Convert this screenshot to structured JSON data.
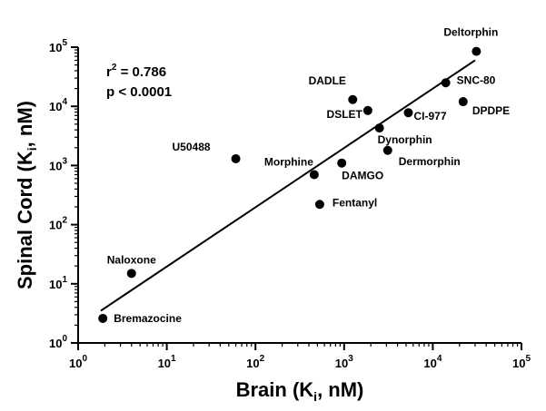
{
  "chart_data": {
    "type": "scatter",
    "xlabel": {
      "main": "Brain (K",
      "sub": "i",
      "end": ", nM)"
    },
    "ylabel": {
      "main": "Spinal Cord (K",
      "sub": "i",
      "end": ", nM)"
    },
    "x_scale": "log",
    "y_scale": "log",
    "xlim": [
      1,
      100000
    ],
    "ylim": [
      1,
      100000
    ],
    "x_ticks": [
      {
        "value": 1,
        "base": "10",
        "exp": "0"
      },
      {
        "value": 10,
        "base": "10",
        "exp": "1"
      },
      {
        "value": 100,
        "base": "10",
        "exp": "2"
      },
      {
        "value": 1000,
        "base": "10",
        "exp": "3"
      },
      {
        "value": 10000,
        "base": "10",
        "exp": "4"
      },
      {
        "value": 100000,
        "base": "10",
        "exp": "5"
      }
    ],
    "y_ticks": [
      {
        "value": 1,
        "base": "10",
        "exp": "0"
      },
      {
        "value": 10,
        "base": "10",
        "exp": "1"
      },
      {
        "value": 100,
        "base": "10",
        "exp": "2"
      },
      {
        "value": 1000,
        "base": "10",
        "exp": "3"
      },
      {
        "value": 10000,
        "base": "10",
        "exp": "4"
      },
      {
        "value": 100000,
        "base": "10",
        "exp": "5"
      }
    ],
    "grid": false,
    "annotation": {
      "r_label": "r",
      "r_exp": "2",
      "r_value": " = 0.786",
      "p_text": "p < 0.0001"
    },
    "points": [
      {
        "label": "Bremazocine",
        "x": 1.9,
        "y": 2.6
      },
      {
        "label": "Naloxone",
        "x": 4,
        "y": 15
      },
      {
        "label": "U50488",
        "x": 60,
        "y": 1300
      },
      {
        "label": "Morphine",
        "x": 460,
        "y": 700
      },
      {
        "label": "Fentanyl",
        "x": 530,
        "y": 220
      },
      {
        "label": "DAMGO",
        "x": 940,
        "y": 1100
      },
      {
        "label": "DADLE",
        "x": 1250,
        "y": 13000
      },
      {
        "label": "DSLET",
        "x": 1850,
        "y": 8500
      },
      {
        "label": "Dynorphin",
        "x": 2500,
        "y": 4300
      },
      {
        "label": "Dermorphin",
        "x": 3100,
        "y": 1800
      },
      {
        "label": "CI-977",
        "x": 5300,
        "y": 7800
      },
      {
        "label": "SNC-80",
        "x": 14000,
        "y": 25000
      },
      {
        "label": "DPDPE",
        "x": 22000,
        "y": 12000
      },
      {
        "label": "Deltorphin",
        "x": 31000,
        "y": 85000
      }
    ],
    "regression_line": {
      "x": [
        1.8,
        30000
      ],
      "y": [
        3.5,
        60000
      ]
    }
  }
}
